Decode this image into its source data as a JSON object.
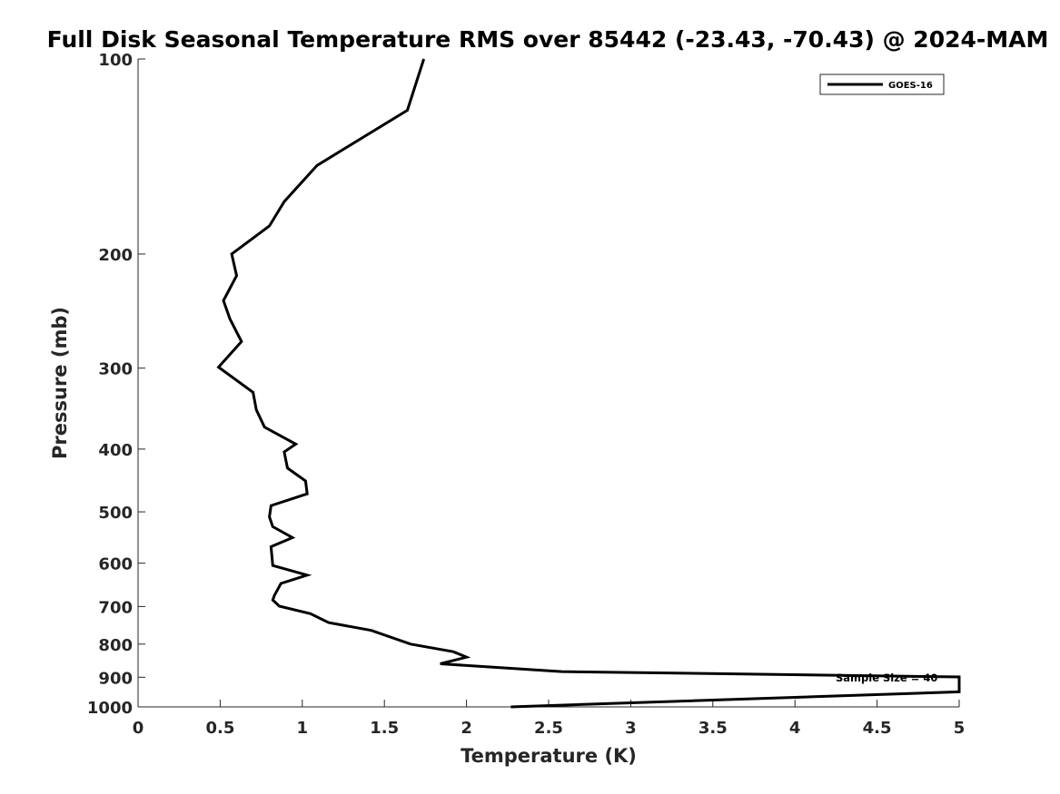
{
  "chart_data": {
    "type": "line",
    "title": "Full Disk Seasonal Temperature RMS over 85442 (-23.43, -70.43) @ 2024-MAM",
    "xlabel": "Temperature (K)",
    "ylabel": "Pressure (mb)",
    "xlim": [
      0,
      5
    ],
    "ylim": [
      100,
      1000
    ],
    "y_scale": "log",
    "y_reversed": true,
    "grid": false,
    "legend_position": "top-right",
    "x_ticks": [
      0,
      0.5,
      1,
      1.5,
      2,
      2.5,
      3,
      3.5,
      4,
      4.5,
      5
    ],
    "x_tick_labels": [
      "0",
      "0.5",
      "1",
      "1.5",
      "2",
      "2.5",
      "3",
      "3.5",
      "4",
      "4.5",
      "5"
    ],
    "y_ticks": [
      100,
      200,
      300,
      400,
      500,
      600,
      700,
      800,
      900,
      1000
    ],
    "y_tick_labels": [
      "100",
      "200",
      "300",
      "400",
      "500",
      "600",
      "700",
      "800",
      "900",
      "1000"
    ],
    "annotation": "Sample Size = 40",
    "series": [
      {
        "name": "GOES-16",
        "color": "#000000",
        "points": [
          [
            1.74,
            100
          ],
          [
            1.64,
            120
          ],
          [
            1.09,
            146
          ],
          [
            0.89,
            166
          ],
          [
            0.8,
            181
          ],
          [
            0.57,
            200
          ],
          [
            0.6,
            216
          ],
          [
            0.52,
            236
          ],
          [
            0.56,
            252
          ],
          [
            0.63,
            273
          ],
          [
            0.49,
            299
          ],
          [
            0.7,
            327
          ],
          [
            0.72,
            348
          ],
          [
            0.77,
            370
          ],
          [
            0.96,
            393
          ],
          [
            0.89,
            404
          ],
          [
            0.91,
            428
          ],
          [
            1.02,
            448
          ],
          [
            1.03,
            469
          ],
          [
            0.81,
            489
          ],
          [
            0.8,
            509
          ],
          [
            0.82,
            527
          ],
          [
            0.94,
            548
          ],
          [
            0.81,
            566
          ],
          [
            0.82,
            605
          ],
          [
            1.03,
            626
          ],
          [
            0.87,
            645
          ],
          [
            0.83,
            673
          ],
          [
            0.82,
            684
          ],
          [
            0.86,
            699
          ],
          [
            1.05,
            718
          ],
          [
            1.16,
            741
          ],
          [
            1.42,
            762
          ],
          [
            1.66,
            800
          ],
          [
            1.92,
            822
          ],
          [
            2.0,
            838
          ],
          [
            1.84,
            858
          ],
          [
            2.58,
            882
          ],
          [
            5.0,
            899
          ],
          [
            5.0,
            948
          ],
          [
            2.27,
            1000
          ]
        ]
      }
    ]
  }
}
